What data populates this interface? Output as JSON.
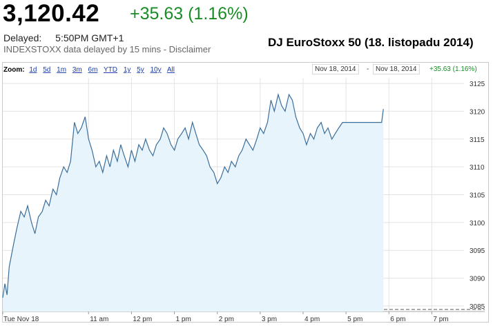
{
  "quote": {
    "price": "3,120.42",
    "change": "+35.63 (1.16%)",
    "delayed_label": "Delayed:",
    "time": "5:50PM GMT+1",
    "source_note": "INDEXSTOXX data delayed by 15 mins - Disclaimer"
  },
  "page_title": "DJ EuroStoxx 50 (18. listopadu 2014)",
  "zoom": {
    "label": "Zoom:",
    "items": [
      "1d",
      "5d",
      "1m",
      "3m",
      "6m",
      "YTD",
      "1y",
      "5y",
      "10y",
      "All"
    ]
  },
  "range": {
    "from": "Nov 18, 2014",
    "separator": "-",
    "to": "Nov 18, 2014",
    "change": "+35.63 (1.16%)"
  },
  "colors": {
    "line": "#3a6d9a",
    "fill": "#e8f4fc",
    "up": "#1a8c26",
    "link": "#1c3ea8"
  },
  "chart_data": {
    "type": "line",
    "x_tick_labels": [
      "Tue Nov 18",
      "11 am",
      "12 pm",
      "1 pm",
      "2 pm",
      "3 pm",
      "4 pm",
      "5 pm",
      "6 pm",
      "7 pm"
    ],
    "y_tick_labels": [
      "3085",
      "3090",
      "3095",
      "3100",
      "3105",
      "3110",
      "3115",
      "3120",
      "3125"
    ],
    "ylim": [
      3084,
      3126
    ],
    "xlim_hours": [
      9,
      19.75
    ],
    "grid": true,
    "area_fill": true,
    "series": [
      {
        "x": [
          9.0,
          9.05,
          9.1,
          9.15,
          9.2,
          9.25,
          9.33,
          9.42,
          9.5,
          9.58,
          9.67,
          9.75,
          9.83,
          9.92,
          10.0,
          10.08,
          10.17,
          10.25,
          10.33,
          10.42,
          10.5,
          10.58,
          10.67,
          10.75,
          10.83,
          10.92,
          11.0,
          11.08,
          11.17,
          11.25,
          11.33,
          11.42,
          11.5,
          11.58,
          11.67,
          11.75,
          11.83,
          11.92,
          12.0,
          12.08,
          12.17,
          12.25,
          12.33,
          12.42,
          12.5,
          12.58,
          12.67,
          12.75,
          12.83,
          12.92,
          13.0,
          13.08,
          13.17,
          13.25,
          13.33,
          13.42,
          13.5,
          13.58,
          13.67,
          13.75,
          13.83,
          13.92,
          14.0,
          14.08,
          14.17,
          14.25,
          14.33,
          14.42,
          14.5,
          14.58,
          14.67,
          14.75,
          14.83,
          14.92,
          15.0,
          15.08,
          15.17,
          15.25,
          15.33,
          15.42,
          15.5,
          15.58,
          15.67,
          15.75,
          15.83,
          15.92,
          16.0,
          16.08,
          16.17,
          16.25,
          16.33,
          16.42,
          16.5,
          16.58,
          16.67,
          16.75,
          16.83,
          16.92,
          17.0,
          17.08,
          17.17,
          17.25,
          17.33,
          17.42,
          17.5,
          17.58,
          17.67,
          17.75,
          17.83,
          17.87
        ],
        "y": [
          3086.5,
          3089,
          3087,
          3092,
          3094,
          3096,
          3099,
          3102,
          3101,
          3103,
          3100,
          3098,
          3101,
          3102,
          3104,
          3103,
          3106,
          3105,
          3108,
          3110,
          3109,
          3111,
          3118,
          3116,
          3117,
          3119,
          3115,
          3113,
          3110,
          3111,
          3109,
          3112,
          3110,
          3113,
          3111,
          3114,
          3112,
          3110,
          3113,
          3111,
          3114,
          3113,
          3115,
          3113,
          3112,
          3114,
          3115,
          3117,
          3116,
          3114,
          3113,
          3115,
          3116,
          3117,
          3115,
          3118,
          3116,
          3114,
          3113,
          3112,
          3110,
          3109,
          3107,
          3108,
          3110,
          3109,
          3111,
          3110,
          3112,
          3113,
          3115,
          3114,
          3113,
          3115,
          3117,
          3116,
          3118,
          3122,
          3120,
          3123,
          3121,
          3120,
          3123,
          3122,
          3119,
          3117,
          3116,
          3114,
          3116,
          3115,
          3117,
          3118,
          3116,
          3117,
          3115,
          3116,
          3117,
          3118,
          3118,
          3118,
          3118,
          3118,
          3118,
          3118,
          3118,
          3118,
          3118,
          3118,
          3118,
          3120.4
        ]
      }
    ]
  }
}
